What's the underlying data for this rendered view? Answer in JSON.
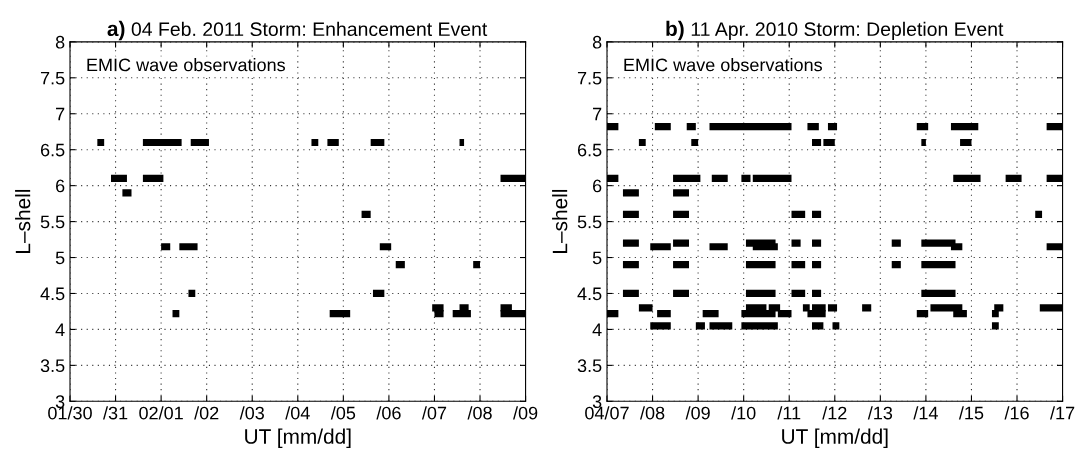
{
  "chart_data": [
    {
      "type": "line",
      "title": "a) 04 Feb. 2011 Storm: Enhancement Event",
      "xlabel": "UT [mm/dd]",
      "ylabel": "L–shell",
      "annotations": [
        "EMIC wave observations"
      ],
      "xlim": [
        "2011-01-30",
        "2011-02-09"
      ],
      "ylim": [
        3,
        8
      ],
      "grid": true,
      "line_style": "solid",
      "marker": "none",
      "xticks": [
        {
          "value": "2011-01-30",
          "label": "01/30"
        },
        {
          "value": "2011-01-31",
          "label": "/31"
        },
        {
          "value": "2011-02-01",
          "label": "02/01"
        },
        {
          "value": "2011-02-02",
          "label": "/02"
        },
        {
          "value": "2011-02-03",
          "label": "/03"
        },
        {
          "value": "2011-02-04",
          "label": "/04"
        },
        {
          "value": "2011-02-05",
          "label": "/05"
        },
        {
          "value": "2011-02-06",
          "label": "/06"
        },
        {
          "value": "2011-02-07",
          "label": "/07"
        },
        {
          "value": "2011-02-08",
          "label": "/08"
        },
        {
          "value": "2011-02-09",
          "label": "/09"
        }
      ],
      "yticks": [
        3,
        3.5,
        4,
        4.5,
        5,
        5.5,
        6,
        6.5,
        7,
        7.5,
        8
      ],
      "series": [
        {
          "color": "#000000",
          "x": [
            "2011-01-30T14:24",
            "2011-01-30T18:00",
            null,
            "2011-01-31T14:24",
            "2011-02-01T10:48",
            null,
            "2011-02-01T15:36",
            "2011-02-02T01:12",
            null,
            "2011-02-04T07:12",
            "2011-02-04T10:48",
            null,
            "2011-02-04T15:36",
            "2011-02-04T21:36",
            null,
            "2011-02-05T14:24",
            "2011-02-05T21:36",
            null,
            "2011-02-07T13:12",
            "2011-02-07T15:36"
          ],
          "values": [
            6.6,
            6.6,
            null,
            6.6,
            6.6,
            null,
            6.6,
            6.6,
            null,
            6.6,
            6.6,
            null,
            6.6,
            6.6,
            null,
            6.6,
            6.6,
            null,
            6.6,
            6.6
          ]
        },
        {
          "color": "#000000",
          "x": [
            "2011-01-30T21:36",
            "2011-01-31T06:00",
            null,
            "2011-01-31T14:24",
            "2011-02-01T01:12",
            null,
            "2011-02-08T10:48",
            "2011-02-09T00:00"
          ],
          "values": [
            6.1,
            6.1,
            null,
            6.1,
            6.1,
            null,
            6.1,
            6.1
          ]
        },
        {
          "color": "#000000",
          "x": [
            "2011-01-31T03:36",
            "2011-01-31T08:24"
          ],
          "values": [
            5.9,
            5.9
          ]
        },
        {
          "color": "#000000",
          "x": [
            "2011-02-05T09:36",
            "2011-02-05T14:24"
          ],
          "values": [
            5.6,
            5.6
          ]
        },
        {
          "color": "#000000",
          "x": [
            "2011-02-01T00:00",
            "2011-02-01T04:48",
            null,
            "2011-02-01T09:36",
            "2011-02-01T19:12",
            null,
            "2011-02-05T19:12",
            "2011-02-06T01:12"
          ],
          "values": [
            5.15,
            5.15,
            null,
            5.15,
            5.15,
            null,
            5.15,
            5.15
          ]
        },
        {
          "color": "#000000",
          "x": [
            "2011-02-06T03:36",
            "2011-02-06T08:24",
            null,
            "2011-02-07T20:24",
            "2011-02-08T00:00"
          ],
          "values": [
            4.9,
            4.9,
            null,
            4.9,
            4.9
          ]
        },
        {
          "color": "#000000",
          "x": [
            "2011-02-01T14:24",
            "2011-02-01T18:00",
            null,
            "2011-02-05T15:36",
            "2011-02-05T21:36"
          ],
          "values": [
            4.5,
            4.5,
            null,
            4.5,
            4.5
          ]
        },
        {
          "color": "#000000",
          "x": [
            "2011-02-06T22:48",
            "2011-02-07T04:48",
            null,
            "2011-02-07T13:12",
            "2011-02-07T18:00",
            null,
            "2011-02-08T10:48",
            "2011-02-08T16:48"
          ],
          "values": [
            4.3,
            4.3,
            null,
            4.3,
            4.3,
            null,
            4.3,
            4.3
          ]
        },
        {
          "color": "#000000",
          "x": [
            "2011-02-01T06:00",
            "2011-02-01T09:36",
            null,
            "2011-02-04T16:48",
            "2011-02-05T03:36",
            null,
            "2011-02-07T00:00",
            "2011-02-07T04:48",
            null,
            "2011-02-07T09:36",
            "2011-02-07T19:12",
            null,
            "2011-02-08T10:48",
            "2011-02-09T00:00"
          ],
          "values": [
            4.22,
            4.22,
            null,
            4.22,
            4.22,
            null,
            4.22,
            4.22,
            null,
            4.22,
            4.22,
            null,
            4.22,
            4.22
          ]
        }
      ]
    },
    {
      "type": "line",
      "title": "b) 11 Apr. 2010 Storm: Depletion Event",
      "xlabel": "UT [mm/dd]",
      "ylabel": "L–shell",
      "annotations": [
        "EMIC wave observations"
      ],
      "xlim": [
        "2010-04-07",
        "2010-04-17"
      ],
      "ylim": [
        3,
        8
      ],
      "grid": true,
      "line_style": "solid",
      "marker": "none",
      "xticks": [
        {
          "value": "2010-04-07",
          "label": "04/07"
        },
        {
          "value": "2010-04-08",
          "label": "/08"
        },
        {
          "value": "2010-04-09",
          "label": "/09"
        },
        {
          "value": "2010-04-10",
          "label": "/10"
        },
        {
          "value": "2010-04-11",
          "label": "/11"
        },
        {
          "value": "2010-04-12",
          "label": "/12"
        },
        {
          "value": "2010-04-13",
          "label": "/13"
        },
        {
          "value": "2010-04-14",
          "label": "/14"
        },
        {
          "value": "2010-04-15",
          "label": "/15"
        },
        {
          "value": "2010-04-16",
          "label": "/16"
        },
        {
          "value": "2010-04-17",
          "label": "/17"
        }
      ],
      "yticks": [
        3,
        3.5,
        4,
        4.5,
        5,
        5.5,
        6,
        6.5,
        7,
        7.5,
        8
      ],
      "series": [
        {
          "color": "#000000",
          "x": [
            "2010-04-07T00:00",
            "2010-04-07T06:00",
            null,
            "2010-04-08T01:12",
            "2010-04-08T09:36",
            null,
            "2010-04-08T18:00",
            "2010-04-08T22:48",
            null,
            "2010-04-09T06:00",
            "2010-04-11T01:12",
            null,
            "2010-04-11T09:36",
            "2010-04-11T15:36",
            null,
            "2010-04-11T20:24",
            "2010-04-12T01:12",
            null,
            "2010-04-13T19:12",
            "2010-04-14T01:12",
            null,
            "2010-04-14T13:12",
            "2010-04-15T03:36",
            null,
            "2010-04-16T15:36",
            "2010-04-17T00:00"
          ],
          "values": [
            6.82,
            6.82,
            null,
            6.82,
            6.82,
            null,
            6.82,
            6.82,
            null,
            6.82,
            6.82,
            null,
            6.82,
            6.82,
            null,
            6.82,
            6.82,
            null,
            6.82,
            6.82,
            null,
            6.82,
            6.82,
            null,
            6.82,
            6.82
          ]
        },
        {
          "color": "#000000",
          "x": [
            "2010-04-07T16:48",
            "2010-04-07T20:24",
            null,
            "2010-04-08T20:24",
            "2010-04-09T00:00",
            null,
            "2010-04-11T12:00",
            "2010-04-11T16:48",
            null,
            "2010-04-11T18:00",
            "2010-04-12T00:00",
            null,
            "2010-04-13T21:36",
            "2010-04-14T00:00",
            null,
            "2010-04-14T18:00",
            "2010-04-15T00:00"
          ],
          "values": [
            6.6,
            6.6,
            null,
            6.6,
            6.6,
            null,
            6.6,
            6.6,
            null,
            6.6,
            6.6,
            null,
            6.6,
            6.6,
            null,
            6.6,
            6.6
          ]
        },
        {
          "color": "#000000",
          "x": [
            "2010-04-07T00:00",
            "2010-04-07T06:00",
            null,
            "2010-04-08T10:48",
            "2010-04-09T01:12",
            null,
            "2010-04-09T07:12",
            "2010-04-09T15:36",
            null,
            "2010-04-09T22:48",
            "2010-04-10T03:36",
            null,
            "2010-04-10T04:48",
            "2010-04-11T01:12",
            null,
            "2010-04-14T14:24",
            "2010-04-15T04:48",
            null,
            "2010-04-15T18:00",
            "2010-04-16T02:24",
            null,
            "2010-04-16T15:36",
            "2010-04-17T00:00"
          ],
          "values": [
            6.1,
            6.1,
            null,
            6.1,
            6.1,
            null,
            6.1,
            6.1,
            null,
            6.1,
            6.1,
            null,
            6.1,
            6.1,
            null,
            6.1,
            6.1,
            null,
            6.1,
            6.1,
            null,
            6.1,
            6.1
          ]
        },
        {
          "color": "#000000",
          "x": [
            "2010-04-07T08:24",
            "2010-04-07T16:48",
            null,
            "2010-04-08T10:48",
            "2010-04-08T19:12"
          ],
          "values": [
            5.9,
            5.9,
            null,
            5.9,
            5.9
          ]
        },
        {
          "color": "#000000",
          "x": [
            "2010-04-07T08:24",
            "2010-04-07T16:48",
            null,
            "2010-04-08T10:48",
            "2010-04-08T19:12",
            null,
            "2010-04-11T01:12",
            "2010-04-11T08:24",
            null,
            "2010-04-11T12:00",
            "2010-04-11T16:48",
            null,
            "2010-04-16T09:36",
            "2010-04-16T13:12"
          ],
          "values": [
            5.6,
            5.6,
            null,
            5.6,
            5.6,
            null,
            5.6,
            5.6,
            null,
            5.6,
            5.6,
            null,
            5.6,
            5.6
          ]
        },
        {
          "color": "#000000",
          "x": [
            "2010-04-07T08:24",
            "2010-04-07T16:48",
            null,
            "2010-04-08T10:48",
            "2010-04-08T19:12",
            null,
            "2010-04-10T01:12",
            "2010-04-10T16:48",
            null,
            "2010-04-11T01:12",
            "2010-04-11T06:00",
            null,
            "2010-04-11T12:00",
            "2010-04-11T16:48",
            null,
            "2010-04-13T06:00",
            "2010-04-13T10:48",
            null,
            "2010-04-13T21:36",
            "2010-04-14T15:36"
          ],
          "values": [
            5.2,
            5.2,
            null,
            5.2,
            5.2,
            null,
            5.2,
            5.2,
            null,
            5.2,
            5.2,
            null,
            5.2,
            5.2,
            null,
            5.2,
            5.2,
            null,
            5.2,
            5.2
          ]
        },
        {
          "color": "#000000",
          "x": [
            "2010-04-07T22:48",
            "2010-04-08T09:36",
            null,
            "2010-04-09T06:00",
            "2010-04-09T15:36",
            null,
            "2010-04-10T04:48",
            "2010-04-10T18:00",
            null,
            "2010-04-14T13:12",
            "2010-04-14T19:12",
            null,
            "2010-04-16T15:36",
            "2010-04-17T00:00"
          ],
          "values": [
            5.15,
            5.15,
            null,
            5.15,
            5.15,
            null,
            5.15,
            5.15,
            null,
            5.15,
            5.15,
            null,
            5.15,
            5.15
          ]
        },
        {
          "color": "#000000",
          "x": [
            "2010-04-07T08:24",
            "2010-04-07T16:48",
            null,
            "2010-04-08T10:48",
            "2010-04-08T19:12",
            null,
            "2010-04-10T01:12",
            "2010-04-10T16:48",
            null,
            "2010-04-11T01:12",
            "2010-04-11T08:24",
            null,
            "2010-04-11T12:00",
            "2010-04-11T16:48",
            null,
            "2010-04-13T06:00",
            "2010-04-13T10:48",
            null,
            "2010-04-13T21:36",
            "2010-04-14T15:36"
          ],
          "values": [
            4.9,
            4.9,
            null,
            4.9,
            4.9,
            null,
            4.9,
            4.9,
            null,
            4.9,
            4.9,
            null,
            4.9,
            4.9,
            null,
            4.9,
            4.9,
            null,
            4.9,
            4.9
          ]
        },
        {
          "color": "#000000",
          "x": [
            "2010-04-07T08:24",
            "2010-04-07T16:48",
            null,
            "2010-04-08T10:48",
            "2010-04-08T19:12",
            null,
            "2010-04-10T01:12",
            "2010-04-10T16:48",
            null,
            "2010-04-11T01:12",
            "2010-04-11T08:24",
            null,
            "2010-04-11T12:00",
            "2010-04-11T16:48",
            null,
            "2010-04-13T21:36",
            "2010-04-14T15:36"
          ],
          "values": [
            4.5,
            4.5,
            null,
            4.5,
            4.5,
            null,
            4.5,
            4.5,
            null,
            4.5,
            4.5,
            null,
            4.5,
            4.5,
            null,
            4.5,
            4.5
          ]
        },
        {
          "color": "#000000",
          "x": [
            "2010-04-07T16:48",
            "2010-04-08T00:00",
            null,
            "2010-04-10T01:12",
            "2010-04-10T12:00",
            null,
            "2010-04-10T13:12",
            "2010-04-10T19:12",
            null,
            "2010-04-11T07:12",
            "2010-04-11T10:48",
            null,
            "2010-04-11T12:00",
            "2010-04-11T19:12",
            null,
            "2010-04-11T20:24",
            "2010-04-12T01:12",
            null,
            "2010-04-12T14:24",
            "2010-04-12T19:12",
            null,
            "2010-04-14T02:24",
            "2010-04-14T19:12",
            null,
            "2010-04-15T12:00",
            "2010-04-15T16:48",
            null,
            "2010-04-16T12:00",
            "2010-04-17T00:00"
          ],
          "values": [
            4.3,
            4.3,
            null,
            4.3,
            4.3,
            null,
            4.3,
            4.3,
            null,
            4.3,
            4.3,
            null,
            4.3,
            4.3,
            null,
            4.3,
            4.3,
            null,
            4.3,
            4.3,
            null,
            4.3,
            4.3,
            null,
            4.3,
            4.3,
            null,
            4.3,
            4.3
          ]
        },
        {
          "color": "#000000",
          "x": [
            "2010-04-07T00:00",
            "2010-04-07T06:00",
            null,
            "2010-04-08T02:24",
            "2010-04-08T09:36",
            null,
            "2010-04-09T02:24",
            "2010-04-09T10:48",
            null,
            "2010-04-09T22:48",
            "2010-04-10T16:48",
            null,
            "2010-04-10T18:00",
            "2010-04-11T01:12",
            null,
            "2010-04-11T09:36",
            "2010-04-11T19:12",
            null,
            "2010-04-13T19:12",
            "2010-04-14T01:12",
            null,
            "2010-04-14T14:24",
            "2010-04-14T21:36",
            null,
            "2010-04-15T10:48",
            "2010-04-15T14:24"
          ],
          "values": [
            4.22,
            4.22,
            null,
            4.22,
            4.22,
            null,
            4.22,
            4.22,
            null,
            4.22,
            4.22,
            null,
            4.22,
            4.22,
            null,
            4.22,
            4.22,
            null,
            4.22,
            4.22,
            null,
            4.22,
            4.22,
            null,
            4.22,
            4.22
          ]
        },
        {
          "color": "#000000",
          "x": [
            "2010-04-07T22:48",
            "2010-04-08T09:36",
            null,
            "2010-04-08T22:48",
            "2010-04-09T03:36",
            null,
            "2010-04-09T06:00",
            "2010-04-09T18:00",
            null,
            "2010-04-09T22:48",
            "2010-04-10T18:00",
            null,
            "2010-04-11T12:00",
            "2010-04-11T18:00",
            null,
            "2010-04-11T22:48",
            "2010-04-12T02:24",
            null,
            "2010-04-15T10:48",
            "2010-04-15T14:24"
          ],
          "values": [
            4.05,
            4.05,
            null,
            4.05,
            4.05,
            null,
            4.05,
            4.05,
            null,
            4.05,
            4.05,
            null,
            4.05,
            4.05,
            null,
            4.05,
            4.05,
            null,
            4.05,
            4.05
          ]
        }
      ]
    }
  ]
}
